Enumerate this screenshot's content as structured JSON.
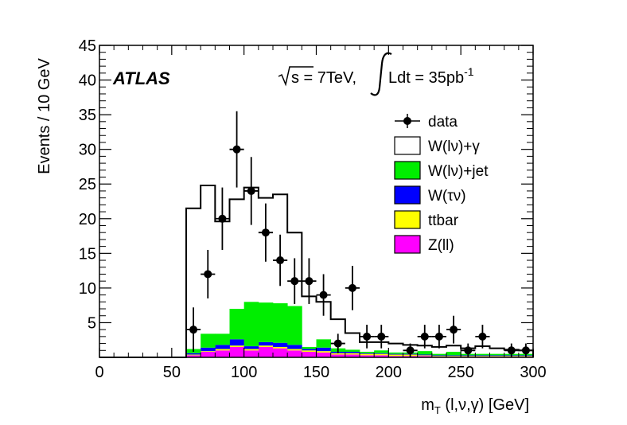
{
  "chart_data": {
    "type": "bar",
    "title": "",
    "xlabel": "m_T (l,ν,γ) [GeV]",
    "xlabel_parts": {
      "main": "m",
      "sub": "T",
      "rest": " (l,ν,γ) [GeV]"
    },
    "ylabel": "Events / 10 GeV",
    "xlim": [
      0,
      300
    ],
    "ylim": [
      0,
      45
    ],
    "x_ticks": [
      0,
      50,
      100,
      150,
      200,
      250,
      300
    ],
    "x_tick_labels": [
      "0",
      "50",
      "100",
      "150",
      "200",
      "250",
      "300"
    ],
    "y_ticks": [
      5,
      10,
      15,
      20,
      25,
      30,
      35,
      40,
      45
    ],
    "y_tick_labels": [
      "5",
      "10",
      "15",
      "20",
      "25",
      "30",
      "35",
      "40",
      "45"
    ],
    "bin_edges": [
      60,
      70,
      80,
      90,
      100,
      110,
      120,
      130,
      140,
      150,
      160,
      170,
      180,
      190,
      200,
      210,
      220,
      230,
      240,
      250,
      260,
      270,
      280,
      290,
      300
    ],
    "series": [
      {
        "name": "Z(ll)",
        "color": "#ff00ff",
        "values": [
          0.3,
          0.8,
          1.0,
          1.5,
          1.0,
          1.5,
          1.3,
          1.0,
          0.8,
          0.7,
          0.4,
          0.4,
          0.3,
          0.3,
          0.2,
          0.2,
          0.2,
          0.1,
          0.1,
          0.1,
          0.1,
          0.1,
          0.1,
          0.1
        ]
      },
      {
        "name": "ttbar",
        "color": "#ffff00",
        "values": [
          0.1,
          0.1,
          0.2,
          0.2,
          0.2,
          0.2,
          0.2,
          0.2,
          0.2,
          0.2,
          0.2,
          0.2,
          0.2,
          0.2,
          0.2,
          0.2,
          0.1,
          0.1,
          0.1,
          0.1,
          0.1,
          0.1,
          0.1,
          0.1
        ]
      },
      {
        "name": "W(τν)",
        "color": "#0000ff",
        "values": [
          0.2,
          0.5,
          0.6,
          0.9,
          0.4,
          0.5,
          0.6,
          0.6,
          0.2,
          0.5,
          0.2,
          0.2,
          0.1,
          0.1,
          0.1,
          0.1,
          0.1,
          0.1,
          0.1,
          0.1,
          0.1,
          0.1,
          0.1,
          0.1
        ]
      },
      {
        "name": "W(lν)+jet",
        "color": "#00ee00",
        "values": [
          0.6,
          2.0,
          1.6,
          4.4,
          6.4,
          5.7,
          5.7,
          5.6,
          0.3,
          1.2,
          0.5,
          0.3,
          0.2,
          0.4,
          0.2,
          0.2,
          0.5,
          0.2,
          0.5,
          0.2,
          0.2,
          0.2,
          0.2,
          0.2
        ]
      },
      {
        "name": "W(lν)+γ",
        "color": "#ffffff",
        "values": [
          20.3,
          21.4,
          16.2,
          15.8,
          16.5,
          15.1,
          15.7,
          10.6,
          7.3,
          5.4,
          4.2,
          2.4,
          1.4,
          1.2,
          1.3,
          1.1,
          0.8,
          1.0,
          0.9,
          0.8,
          1.1,
          0.8,
          0.6,
          0.5
        ]
      }
    ],
    "stack_totals": [
      21.5,
      24.8,
      19.6,
      22.8,
      24.5,
      23.0,
      23.5,
      18.0,
      8.8,
      8.0,
      5.5,
      3.5,
      2.2,
      2.2,
      2.0,
      1.8,
      1.7,
      1.5,
      1.7,
      1.3,
      1.6,
      1.3,
      1.1,
      1.0
    ],
    "data": {
      "name": "data",
      "x": [
        65,
        75,
        85,
        95,
        105,
        115,
        125,
        135,
        145,
        155,
        165,
        175,
        185,
        195,
        215,
        225,
        235,
        245,
        255,
        265,
        285,
        295
      ],
      "y": [
        4,
        12,
        20,
        30,
        24,
        18,
        14,
        11,
        11,
        9,
        2,
        10,
        3,
        3,
        1,
        3,
        3,
        4,
        1,
        3,
        1,
        1
      ],
      "err": [
        3.2,
        3.5,
        4.5,
        5.5,
        4.9,
        4.2,
        3.7,
        3.3,
        3.3,
        3.0,
        1.4,
        3.2,
        1.7,
        1.7,
        1.0,
        1.7,
        1.7,
        2.0,
        1.0,
        1.7,
        1.0,
        1.0
      ]
    },
    "legend": {
      "position": "top-right",
      "entries": [
        {
          "label": "data",
          "kind": "marker"
        },
        {
          "label": "W(lν)+γ",
          "kind": "box",
          "color": "#ffffff"
        },
        {
          "label": "W(lν)+jet",
          "kind": "box",
          "color": "#00ee00"
        },
        {
          "label": "W(τν)",
          "kind": "box",
          "color": "#0000ff"
        },
        {
          "label": "ttbar",
          "kind": "box",
          "color": "#ffff00"
        },
        {
          "label": "Z(ll)",
          "kind": "box",
          "color": "#ff00ff"
        }
      ]
    },
    "annotations": {
      "experiment": "ATLAS",
      "sqrt_s": "s = 7TeV,",
      "luminosity": "Ldt = 35pb",
      "lumi_exp": "-1"
    }
  }
}
